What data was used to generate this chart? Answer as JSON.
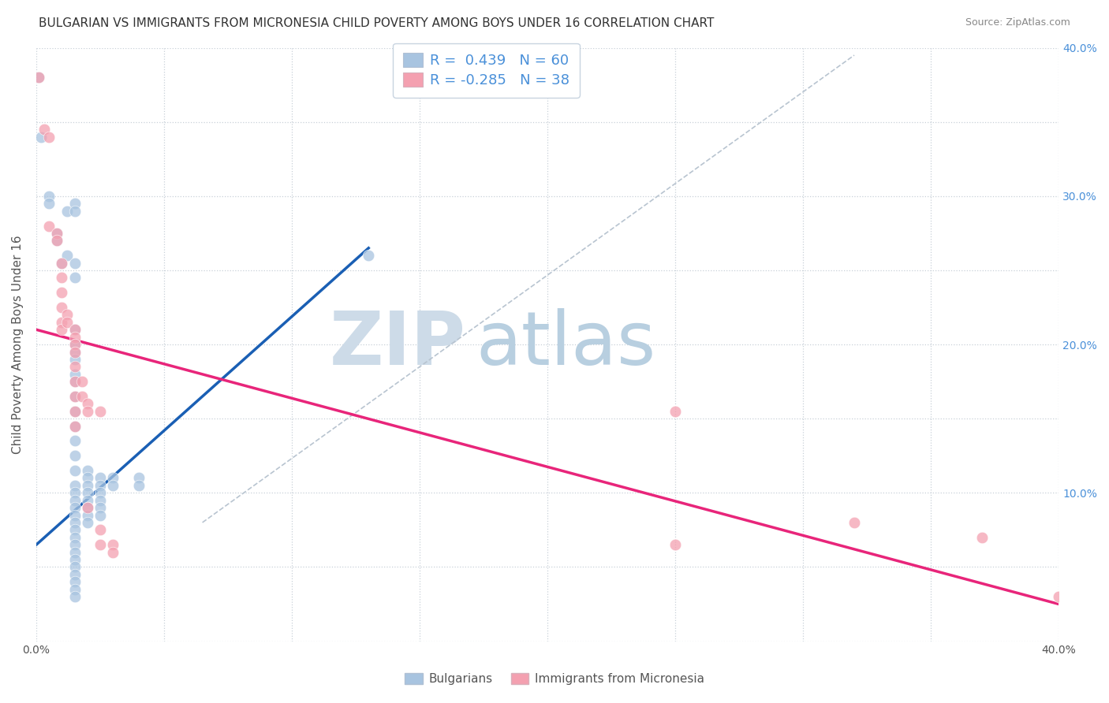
{
  "title": "BULGARIAN VS IMMIGRANTS FROM MICRONESIA CHILD POVERTY AMONG BOYS UNDER 16 CORRELATION CHART",
  "source": "Source: ZipAtlas.com",
  "ylabel": "Child Poverty Among Boys Under 16",
  "xlim": [
    0.0,
    0.4
  ],
  "ylim": [
    0.0,
    0.4
  ],
  "blue_r": 0.439,
  "blue_n": 60,
  "pink_r": -0.285,
  "pink_n": 38,
  "blue_color": "#a8c4e0",
  "pink_color": "#f4a0b0",
  "blue_line_color": "#1a5fb4",
  "pink_line_color": "#e8257a",
  "trend_line_color": "#b8c4d0",
  "watermark_zip_color": "#cddbe8",
  "watermark_atlas_color": "#b8cfe0",
  "blue_scatter": [
    [
      0.001,
      0.38
    ],
    [
      0.002,
      0.34
    ],
    [
      0.005,
      0.3
    ],
    [
      0.005,
      0.295
    ],
    [
      0.008,
      0.275
    ],
    [
      0.008,
      0.27
    ],
    [
      0.01,
      0.255
    ],
    [
      0.012,
      0.29
    ],
    [
      0.012,
      0.26
    ],
    [
      0.015,
      0.295
    ],
    [
      0.015,
      0.29
    ],
    [
      0.015,
      0.255
    ],
    [
      0.015,
      0.245
    ],
    [
      0.015,
      0.21
    ],
    [
      0.015,
      0.2
    ],
    [
      0.015,
      0.195
    ],
    [
      0.015,
      0.19
    ],
    [
      0.015,
      0.18
    ],
    [
      0.015,
      0.175
    ],
    [
      0.015,
      0.165
    ],
    [
      0.015,
      0.155
    ],
    [
      0.015,
      0.145
    ],
    [
      0.015,
      0.135
    ],
    [
      0.015,
      0.125
    ],
    [
      0.015,
      0.115
    ],
    [
      0.015,
      0.105
    ],
    [
      0.015,
      0.1
    ],
    [
      0.015,
      0.095
    ],
    [
      0.015,
      0.09
    ],
    [
      0.015,
      0.085
    ],
    [
      0.015,
      0.08
    ],
    [
      0.015,
      0.075
    ],
    [
      0.015,
      0.07
    ],
    [
      0.015,
      0.065
    ],
    [
      0.015,
      0.06
    ],
    [
      0.015,
      0.055
    ],
    [
      0.015,
      0.05
    ],
    [
      0.015,
      0.045
    ],
    [
      0.015,
      0.04
    ],
    [
      0.015,
      0.035
    ],
    [
      0.015,
      0.03
    ],
    [
      0.02,
      0.115
    ],
    [
      0.02,
      0.11
    ],
    [
      0.02,
      0.105
    ],
    [
      0.02,
      0.1
    ],
    [
      0.02,
      0.095
    ],
    [
      0.02,
      0.09
    ],
    [
      0.02,
      0.085
    ],
    [
      0.02,
      0.08
    ],
    [
      0.025,
      0.11
    ],
    [
      0.025,
      0.105
    ],
    [
      0.025,
      0.1
    ],
    [
      0.025,
      0.095
    ],
    [
      0.025,
      0.09
    ],
    [
      0.025,
      0.085
    ],
    [
      0.03,
      0.11
    ],
    [
      0.03,
      0.105
    ],
    [
      0.04,
      0.11
    ],
    [
      0.04,
      0.105
    ],
    [
      0.13,
      0.26
    ]
  ],
  "pink_scatter": [
    [
      0.001,
      0.38
    ],
    [
      0.003,
      0.345
    ],
    [
      0.005,
      0.34
    ],
    [
      0.005,
      0.28
    ],
    [
      0.008,
      0.275
    ],
    [
      0.008,
      0.27
    ],
    [
      0.01,
      0.255
    ],
    [
      0.01,
      0.245
    ],
    [
      0.01,
      0.235
    ],
    [
      0.01,
      0.225
    ],
    [
      0.01,
      0.215
    ],
    [
      0.01,
      0.21
    ],
    [
      0.012,
      0.22
    ],
    [
      0.012,
      0.215
    ],
    [
      0.015,
      0.21
    ],
    [
      0.015,
      0.205
    ],
    [
      0.015,
      0.2
    ],
    [
      0.015,
      0.195
    ],
    [
      0.015,
      0.185
    ],
    [
      0.015,
      0.175
    ],
    [
      0.015,
      0.165
    ],
    [
      0.015,
      0.155
    ],
    [
      0.015,
      0.145
    ],
    [
      0.018,
      0.175
    ],
    [
      0.018,
      0.165
    ],
    [
      0.02,
      0.16
    ],
    [
      0.02,
      0.155
    ],
    [
      0.02,
      0.09
    ],
    [
      0.025,
      0.155
    ],
    [
      0.025,
      0.075
    ],
    [
      0.025,
      0.065
    ],
    [
      0.03,
      0.065
    ],
    [
      0.03,
      0.06
    ],
    [
      0.25,
      0.155
    ],
    [
      0.25,
      0.065
    ],
    [
      0.32,
      0.08
    ],
    [
      0.37,
      0.07
    ],
    [
      0.4,
      0.03
    ]
  ],
  "blue_trend_x": [
    0.0,
    0.13
  ],
  "blue_trend_y": [
    0.065,
    0.265
  ],
  "pink_trend_x": [
    0.0,
    0.4
  ],
  "pink_trend_y": [
    0.21,
    0.025
  ],
  "diagonal_trend_x": [
    0.065,
    0.32
  ],
  "diagonal_trend_y": [
    0.08,
    0.395
  ]
}
